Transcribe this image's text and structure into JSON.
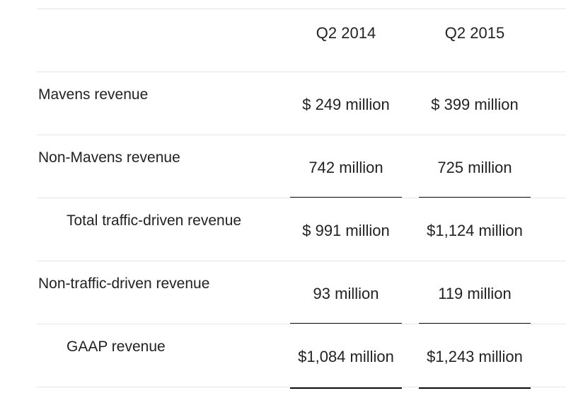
{
  "table": {
    "headers": [
      "Q2 2014",
      "Q2 2015"
    ],
    "rows": [
      {
        "label": "Mavens revenue",
        "q2_2014": "$ 249 million",
        "q2_2015": "$ 399 million"
      },
      {
        "label": "Non-Mavens revenue",
        "q2_2014": "742 million",
        "q2_2015": "725 million"
      },
      {
        "label": "Total traffic-driven revenue",
        "q2_2014": "$ 991 million",
        "q2_2015": "$1,124 million"
      },
      {
        "label": "Non-traffic-driven revenue",
        "q2_2014": "93 million",
        "q2_2015": "119 million"
      },
      {
        "label": "GAAP revenue",
        "q2_2014": "$1,084 million",
        "q2_2015": "$1,243 million"
      }
    ]
  }
}
